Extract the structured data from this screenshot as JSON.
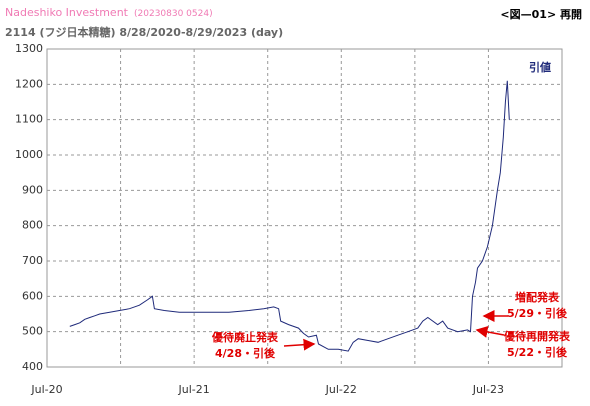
{
  "chart_data": {
    "type": "line",
    "source": "Nadeshiko Investment",
    "timestamp": "(20230830 0524)",
    "title": "2114 (フジ日本精糖) 8/28/2020-8/29/2023 (day)",
    "figure_label": "<図—01> 再開",
    "xlim": [
      2020.5,
      2024.0
    ],
    "xticks": [
      {
        "value": 2020.5,
        "label": "Jul-20"
      },
      {
        "value": 2021.5,
        "label": "Jul-21"
      },
      {
        "value": 2022.5,
        "label": "Jul-22"
      },
      {
        "value": 2023.5,
        "label": "Jul-23"
      }
    ],
    "xgrid": [
      2021.0,
      2021.5,
      2022.0,
      2022.5,
      2023.0,
      2023.5
    ],
    "ylim": [
      400,
      1300
    ],
    "yticks": [
      400,
      500,
      600,
      700,
      800,
      900,
      1000,
      1100,
      1200,
      1300
    ],
    "grid": true,
    "series": [
      {
        "name": "引値",
        "color": "#1f2a7a",
        "x": [
          2020.655,
          2020.689,
          2020.723,
          2020.757,
          2020.791,
          2020.824,
          2020.858,
          2020.926,
          2020.993,
          2021.061,
          2021.128,
          2021.182,
          2021.216,
          2021.23,
          2021.297,
          2021.399,
          2021.5,
          2021.601,
          2021.736,
          2021.872,
          2021.973,
          2022.041,
          2022.074,
          2022.088,
          2022.142,
          2022.209,
          2022.243,
          2022.277,
          2022.331,
          2022.345,
          2022.412,
          2022.48,
          2022.547,
          2022.581,
          2022.615,
          2022.682,
          2022.75,
          2022.818,
          2022.885,
          2022.953,
          2023.02,
          2023.054,
          2023.088,
          2023.155,
          2023.189,
          2023.223,
          2023.291,
          2023.358,
          2023.378,
          2023.392,
          2023.412,
          2023.426,
          2023.459,
          2023.493,
          2023.527,
          2023.561,
          2023.581,
          2023.601,
          2023.615,
          2023.628,
          2023.642
        ],
        "values": [
          515,
          520,
          525,
          535,
          540,
          545,
          550,
          555,
          560,
          565,
          575,
          590,
          600,
          565,
          560,
          555,
          555,
          555,
          555,
          560,
          565,
          570,
          565,
          530,
          520,
          510,
          495,
          485,
          490,
          465,
          450,
          450,
          445,
          470,
          480,
          475,
          470,
          480,
          490,
          500,
          510,
          530,
          540,
          520,
          530,
          510,
          500,
          505,
          500,
          600,
          640,
          680,
          700,
          740,
          800,
          900,
          950,
          1050,
          1150,
          1210,
          1100
        ]
      }
    ],
    "annotations": [
      {
        "lines": [
          "優待廃止発表",
          "4/28・引後"
        ]
      },
      {
        "lines": [
          "増配発表",
          "5/29・引後"
        ]
      },
      {
        "lines": [
          "優待再開発表",
          "5/22・引後"
        ]
      }
    ]
  }
}
